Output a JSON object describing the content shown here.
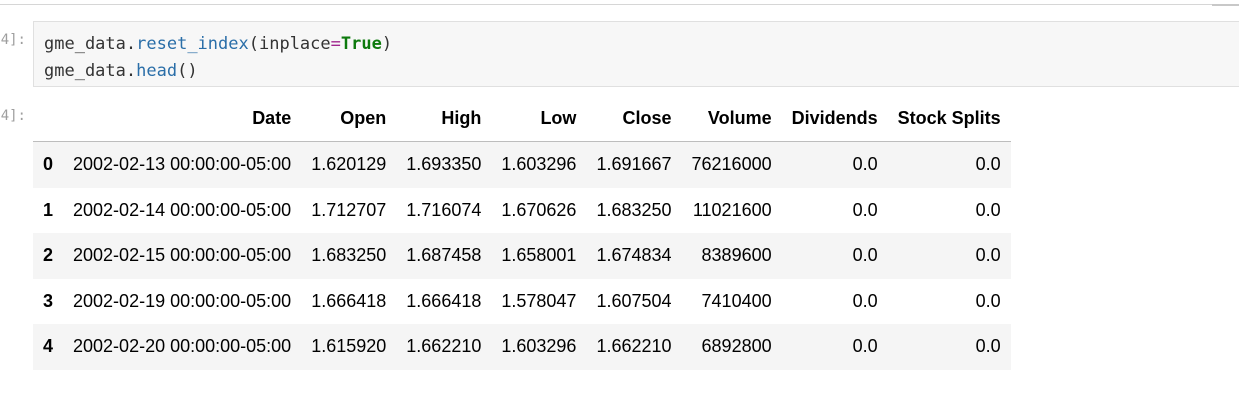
{
  "notebook": {
    "input_prompt": "4]:",
    "output_prompt": "4]:",
    "code": {
      "line1": {
        "obj": "gme_data",
        "dot": ".",
        "method": "reset_index",
        "open": "(",
        "arg": "inplace",
        "eq": "=",
        "value": "True",
        "close": ")"
      },
      "line2": {
        "obj": "gme_data",
        "dot": ".",
        "method": "head",
        "parens": "()"
      }
    }
  },
  "dataframe": {
    "columns": [
      "Date",
      "Open",
      "High",
      "Low",
      "Close",
      "Volume",
      "Dividends",
      "Stock Splits"
    ],
    "rows": [
      {
        "index": "0",
        "cells": [
          "2002-02-13 00:00:00-05:00",
          "1.620129",
          "1.693350",
          "1.603296",
          "1.691667",
          "76216000",
          "0.0",
          "0.0"
        ]
      },
      {
        "index": "1",
        "cells": [
          "2002-02-14 00:00:00-05:00",
          "1.712707",
          "1.716074",
          "1.670626",
          "1.683250",
          "11021600",
          "0.0",
          "0.0"
        ]
      },
      {
        "index": "2",
        "cells": [
          "2002-02-15 00:00:00-05:00",
          "1.683250",
          "1.687458",
          "1.658001",
          "1.674834",
          "8389600",
          "0.0",
          "0.0"
        ]
      },
      {
        "index": "3",
        "cells": [
          "2002-02-19 00:00:00-05:00",
          "1.666418",
          "1.666418",
          "1.578047",
          "1.607504",
          "7410400",
          "0.0",
          "0.0"
        ]
      },
      {
        "index": "4",
        "cells": [
          "2002-02-20 00:00:00-05:00",
          "1.615920",
          "1.662210",
          "1.603296",
          "1.662210",
          "6892800",
          "0.0",
          "0.0"
        ]
      }
    ]
  }
}
